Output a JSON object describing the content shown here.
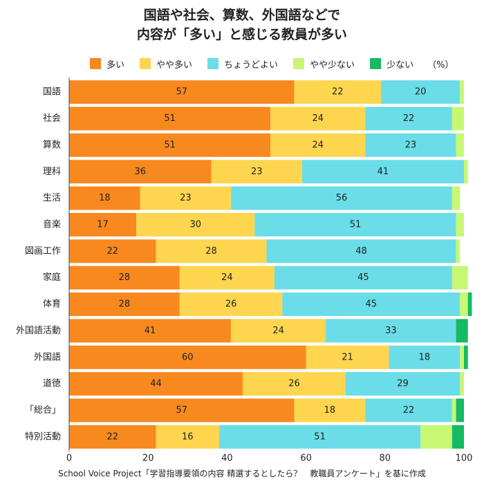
{
  "title_lines": [
    "国語や社会、算数、外国語などで",
    "内容が「多い」と感じる教員が多い"
  ],
  "legend_unit": "（%）",
  "source": "School Voice Project「学習指導要領の内容 精選するとしたら？　教職員アンケート」を基に作成",
  "chart_data": {
    "type": "bar",
    "orientation": "horizontal",
    "stacked": true,
    "categories": [
      "国語",
      "社会",
      "算数",
      "理科",
      "生活",
      "音楽",
      "図画工作",
      "家庭",
      "体育",
      "外国語活動",
      "外国語",
      "道徳",
      "「総合」",
      "特別活動"
    ],
    "series": [
      {
        "name": "多い",
        "color": "#F7891F",
        "values": [
          57,
          51,
          51,
          36,
          18,
          17,
          22,
          28,
          28,
          41,
          60,
          44,
          57,
          22
        ]
      },
      {
        "name": "やや多い",
        "color": "#FDD54F",
        "values": [
          22,
          24,
          24,
          23,
          23,
          30,
          28,
          24,
          26,
          24,
          21,
          26,
          18,
          16
        ]
      },
      {
        "name": "ちょうどよい",
        "color": "#6ADDE8",
        "values": [
          20,
          22,
          23,
          41,
          56,
          51,
          48,
          45,
          45,
          33,
          18,
          29,
          22,
          51
        ]
      },
      {
        "name": "やや少ない",
        "color": "#C8F772",
        "values": [
          1,
          3,
          2,
          1,
          2,
          2,
          1,
          4,
          2,
          0,
          1,
          1,
          1,
          8
        ]
      },
      {
        "name": "少ない",
        "color": "#16B964",
        "values": [
          0,
          0,
          0,
          0,
          0,
          0,
          0,
          0,
          1,
          3,
          1,
          0,
          2,
          3
        ]
      }
    ],
    "labeled_series": [
      "多い",
      "やや多い",
      "ちょうどよい"
    ],
    "xlim": [
      0,
      100
    ],
    "xticks": [
      0,
      20,
      40,
      60,
      80,
      100
    ],
    "grid": false,
    "legend_position": "top"
  }
}
